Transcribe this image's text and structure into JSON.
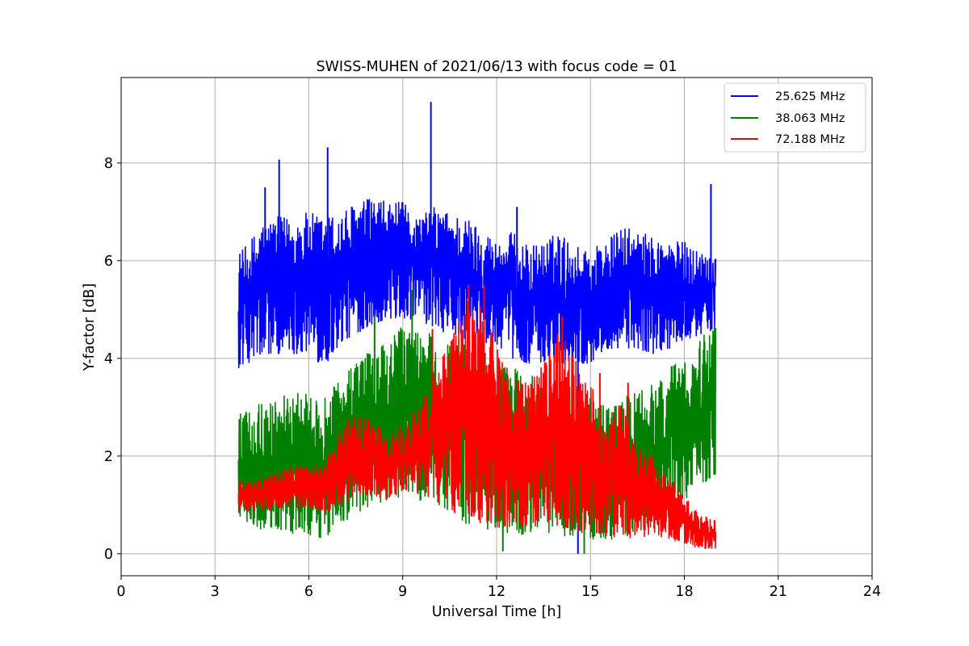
{
  "chart_data": {
    "type": "line",
    "title": "SWISS-MUHEN of 2021/06/13 with focus code = 01",
    "xlabel": "Universal Time [h]",
    "ylabel": "Y-factor [dB]",
    "xlim": [
      0,
      24
    ],
    "ylim": [
      -0.45,
      9.75
    ],
    "xticks": [
      0,
      3,
      6,
      9,
      12,
      15,
      18,
      21,
      24
    ],
    "xtick_labels": [
      "0",
      "3",
      "6",
      "9",
      "12",
      "15",
      "18",
      "21",
      "24"
    ],
    "yticks": [
      0,
      2,
      4,
      6,
      8
    ],
    "ytick_labels": [
      "0",
      "2",
      "4",
      "6",
      "8"
    ],
    "grid": true,
    "legend_position": "top-right",
    "series": [
      {
        "name": "25.625 MHz",
        "color": "#0000ff",
        "x": [
          3.75,
          4.0,
          4.5,
          5.0,
          5.5,
          6.0,
          6.5,
          7.0,
          7.5,
          8.0,
          8.5,
          9.0,
          9.5,
          10.0,
          10.5,
          11.0,
          11.5,
          12.0,
          12.5,
          13.0,
          13.5,
          14.0,
          14.5,
          15.0,
          15.5,
          16.0,
          16.5,
          17.0,
          17.5,
          18.0,
          18.5,
          19.0
        ],
        "low": [
          3.8,
          3.9,
          4.0,
          4.1,
          4.1,
          4.1,
          3.8,
          4.3,
          4.5,
          4.7,
          4.8,
          4.8,
          4.8,
          4.6,
          4.5,
          4.4,
          4.3,
          4.3,
          4.0,
          3.9,
          3.9,
          3.9,
          3.9,
          3.9,
          4.2,
          4.2,
          4.2,
          4.1,
          4.2,
          4.3,
          4.5,
          4.6
        ],
        "high": [
          6.2,
          6.3,
          6.8,
          6.9,
          6.9,
          7.0,
          6.9,
          7.0,
          7.2,
          7.3,
          7.2,
          7.2,
          6.9,
          7.1,
          7.0,
          6.9,
          6.7,
          6.4,
          6.6,
          6.3,
          6.4,
          6.6,
          6.3,
          6.3,
          6.4,
          6.7,
          6.6,
          6.5,
          6.4,
          6.4,
          6.2,
          6.2
        ],
        "spikes": [
          [
            4.6,
            7.5
          ],
          [
            5.05,
            8.07
          ],
          [
            6.6,
            8.32
          ],
          [
            9.9,
            9.25
          ],
          [
            12.65,
            7.1
          ],
          [
            18.85,
            7.57
          ],
          [
            14.6,
            0.0
          ]
        ]
      },
      {
        "name": "38.063 MHz",
        "color": "#008000",
        "x": [
          3.75,
          4.0,
          4.5,
          5.0,
          5.5,
          6.0,
          6.5,
          7.0,
          7.5,
          8.0,
          8.5,
          9.0,
          9.5,
          10.0,
          10.5,
          11.0,
          11.5,
          12.0,
          12.5,
          13.0,
          13.5,
          14.0,
          14.5,
          15.0,
          15.5,
          16.0,
          16.5,
          17.0,
          17.5,
          18.0,
          18.5,
          19.0
        ],
        "low": [
          0.6,
          0.6,
          0.5,
          0.5,
          0.4,
          0.4,
          0.3,
          0.6,
          0.8,
          1.0,
          1.0,
          1.2,
          1.1,
          1.0,
          0.8,
          0.6,
          0.5,
          0.4,
          0.4,
          0.4,
          0.4,
          0.4,
          0.3,
          0.3,
          0.3,
          0.3,
          0.4,
          0.6,
          0.8,
          1.1,
          1.4,
          1.6
        ],
        "high": [
          3.0,
          2.9,
          3.1,
          3.2,
          3.3,
          3.3,
          3.3,
          3.6,
          3.9,
          4.2,
          4.3,
          4.7,
          4.6,
          4.5,
          4.3,
          4.3,
          4.2,
          4.0,
          3.8,
          3.7,
          3.7,
          3.6,
          3.4,
          3.3,
          3.0,
          3.2,
          3.3,
          3.5,
          3.8,
          4.2,
          4.4,
          4.7
        ],
        "spikes": [
          [
            8.1,
            4.9
          ],
          [
            9.3,
            5.4
          ],
          [
            12.2,
            0.05
          ],
          [
            14.8,
            0.0
          ]
        ]
      },
      {
        "name": "72.188 MHz",
        "color": "#ff0000",
        "x": [
          3.75,
          4.0,
          4.5,
          5.0,
          5.5,
          6.0,
          6.5,
          7.0,
          7.5,
          8.0,
          8.5,
          9.0,
          9.5,
          10.0,
          10.5,
          11.0,
          11.5,
          12.0,
          12.5,
          13.0,
          13.5,
          14.0,
          14.5,
          15.0,
          15.5,
          16.0,
          16.5,
          17.0,
          17.5,
          18.0,
          18.5,
          19.0
        ],
        "low": [
          0.8,
          0.85,
          0.9,
          0.9,
          0.95,
          0.95,
          0.85,
          1.0,
          1.2,
          1.2,
          1.1,
          1.3,
          1.2,
          1.1,
          0.8,
          0.7,
          0.6,
          0.55,
          0.5,
          0.55,
          0.5,
          0.6,
          0.45,
          0.4,
          0.35,
          0.3,
          0.3,
          0.4,
          0.3,
          0.2,
          0.1,
          0.1
        ],
        "high": [
          1.5,
          1.5,
          1.55,
          1.65,
          1.8,
          1.8,
          1.9,
          2.6,
          2.9,
          2.7,
          2.5,
          2.6,
          3.0,
          3.9,
          4.3,
          5.2,
          5.1,
          4.3,
          3.8,
          3.5,
          3.9,
          4.6,
          4.0,
          3.5,
          2.7,
          3.1,
          2.2,
          2.0,
          1.6,
          1.2,
          0.8,
          0.7
        ],
        "spikes": [
          [
            9.95,
            4.6
          ],
          [
            11.1,
            5.5
          ],
          [
            11.6,
            5.5
          ],
          [
            14.1,
            4.85
          ],
          [
            15.3,
            3.7
          ],
          [
            15.5,
            0.4
          ],
          [
            16.2,
            3.5
          ]
        ]
      }
    ]
  }
}
